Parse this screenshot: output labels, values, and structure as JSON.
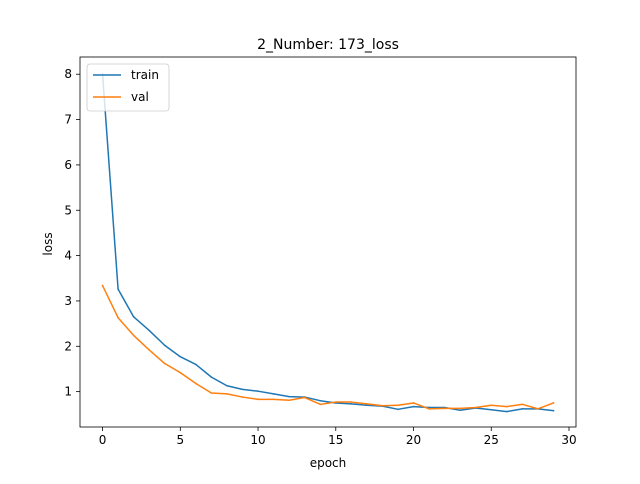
{
  "chart_data": {
    "type": "line",
    "title": "2_Number: 173_loss",
    "xlabel": "epoch",
    "ylabel": "loss",
    "xlim": [
      -1.45,
      30.45
    ],
    "ylim": [
      0.22,
      8.38
    ],
    "xticks": [
      0,
      5,
      10,
      15,
      20,
      25,
      30
    ],
    "yticks": [
      1,
      2,
      3,
      4,
      5,
      6,
      7,
      8
    ],
    "legend_position": "top-left",
    "grid": false,
    "x": [
      0,
      1,
      2,
      3,
      4,
      5,
      6,
      7,
      8,
      9,
      10,
      11,
      12,
      13,
      14,
      15,
      16,
      17,
      18,
      19,
      20,
      21,
      22,
      23,
      24,
      25,
      26,
      27,
      28,
      29
    ],
    "series": [
      {
        "name": "train",
        "color": "#1f77b4",
        "values": [
          8.0,
          3.26,
          2.65,
          2.35,
          2.02,
          1.77,
          1.6,
          1.32,
          1.13,
          1.05,
          1.01,
          0.95,
          0.89,
          0.88,
          0.8,
          0.75,
          0.73,
          0.7,
          0.68,
          0.61,
          0.67,
          0.65,
          0.65,
          0.59,
          0.64,
          0.6,
          0.56,
          0.62,
          0.62,
          0.58
        ]
      },
      {
        "name": "val",
        "color": "#ff7f0e",
        "values": [
          3.34,
          2.63,
          2.24,
          1.92,
          1.62,
          1.42,
          1.18,
          0.97,
          0.95,
          0.88,
          0.83,
          0.83,
          0.81,
          0.87,
          0.72,
          0.77,
          0.77,
          0.73,
          0.69,
          0.7,
          0.75,
          0.62,
          0.63,
          0.63,
          0.65,
          0.7,
          0.67,
          0.72,
          0.62,
          0.75
        ]
      }
    ]
  }
}
